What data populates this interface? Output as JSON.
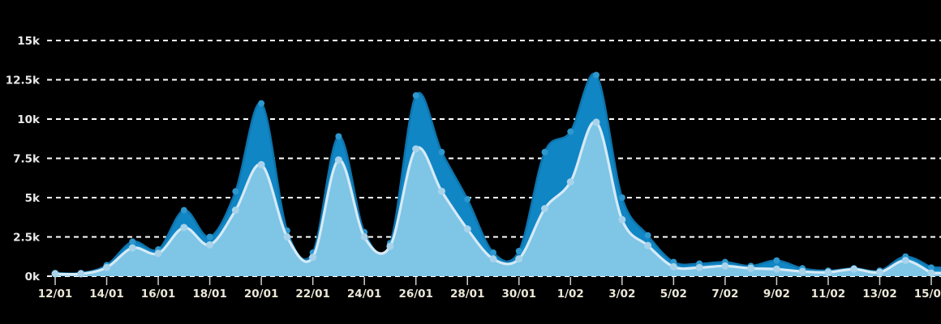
{
  "page": {
    "background_color": "#000000",
    "title": ""
  },
  "chart_data": {
    "type": "area",
    "title": "",
    "xlabel": "",
    "ylabel": "",
    "unit": "k (thousands)",
    "legend": "none",
    "grid": {
      "shown": true,
      "style": "dashed",
      "color": "#ffffff",
      "orientation": "horizontal"
    },
    "ylim": [
      0,
      15500
    ],
    "y_ticks": [
      {
        "value": 0,
        "label": "0k"
      },
      {
        "value": 2500,
        "label": "2.5k"
      },
      {
        "value": 5000,
        "label": "5k"
      },
      {
        "value": 7500,
        "label": "7.5k"
      },
      {
        "value": 10000,
        "label": "10k"
      },
      {
        "value": 12500,
        "label": "12.5k"
      },
      {
        "value": 15000,
        "label": "15k"
      }
    ],
    "x_categories": [
      "12/01",
      "13/01",
      "14/01",
      "15/01",
      "16/01",
      "17/01",
      "18/01",
      "19/01",
      "20/01",
      "21/01",
      "22/01",
      "23/01",
      "24/01",
      "25/01",
      "26/01",
      "27/01",
      "28/01",
      "29/01",
      "30/01",
      "31/01",
      "1/02",
      "2/02",
      "3/02",
      "4/02",
      "5/02",
      "6/02",
      "7/02",
      "8/02",
      "9/02",
      "10/02",
      "11/02",
      "12/02",
      "13/02",
      "14/02",
      "15/02"
    ],
    "x_tick_label_every": 2,
    "x_visible_tick_labels": [
      "12/01",
      "14/01",
      "16/01",
      "18/01",
      "20/01",
      "22/01",
      "24/01",
      "26/01",
      "28/01",
      "30/01",
      "1/02",
      "3/02",
      "5/02",
      "7/02",
      "9/02",
      "11/02",
      "13/02",
      "15/02"
    ],
    "series": [
      {
        "name": "dark-blue-series",
        "fill_color": "#1186C5",
        "line_color": "#0D74AC",
        "marker_color": "#2D97CE",
        "values": [
          200,
          200,
          700,
          2200,
          1700,
          4200,
          2500,
          5400,
          11000,
          2900,
          1500,
          8900,
          2800,
          2100,
          11500,
          7900,
          4900,
          1500,
          1600,
          7900,
          9200,
          12800,
          5000,
          2600,
          900,
          800,
          900,
          650,
          1000,
          500,
          350,
          500,
          350,
          1250,
          550
        ]
      },
      {
        "name": "light-blue-series",
        "fill_color": "#7EC5E6",
        "line_color": "#D6EAF6",
        "marker_color": "#A8D3EA",
        "values": [
          150,
          150,
          550,
          1800,
          1450,
          3100,
          2000,
          4200,
          7100,
          2500,
          1200,
          7400,
          2500,
          1900,
          8100,
          5400,
          3000,
          1100,
          1100,
          4300,
          6000,
          9800,
          3600,
          1950,
          600,
          550,
          650,
          500,
          450,
          300,
          250,
          450,
          250,
          1000,
          200
        ]
      }
    ],
    "axis_text_color_y": "#E9E9E9",
    "axis_text_color_x": "#ECE7D8",
    "tick_mark_color": "#CFCFCF"
  }
}
